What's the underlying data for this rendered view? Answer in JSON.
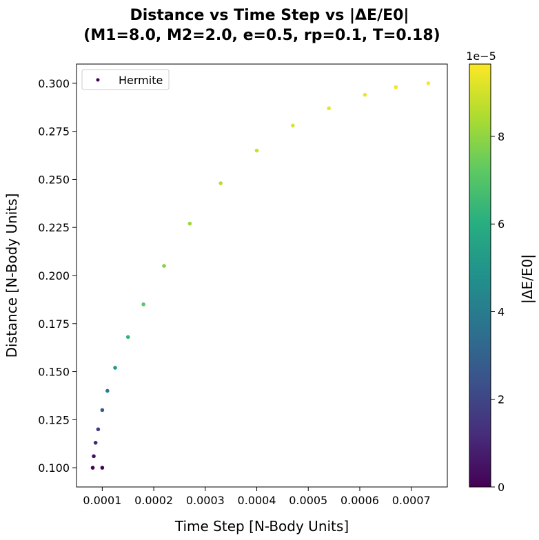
{
  "chart_data": {
    "type": "scatter",
    "title": "Distance vs Time Step vs |ΔE/E0|",
    "subtitle": "(M1=8.0, M2=2.0, e=0.5, rp=0.1, T=0.18)",
    "xlabel": "Time Step [N-Body Units]",
    "ylabel": "Distance [N-Body Units]",
    "xlim": [
      5e-05,
      0.00077
    ],
    "ylim": [
      0.09,
      0.31
    ],
    "xticks": [
      "0.0001",
      "0.0002",
      "0.0003",
      "0.0004",
      "0.0005",
      "0.0006",
      "0.0007"
    ],
    "yticks": [
      "0.100",
      "0.125",
      "0.150",
      "0.175",
      "0.200",
      "0.225",
      "0.250",
      "0.275",
      "0.300"
    ],
    "grid": false,
    "legend": {
      "placement": "top-left",
      "entries": [
        "Hermite"
      ]
    },
    "series": [
      {
        "name": "Hermite",
        "x": [
          0.0001,
          8.15e-05,
          8.35e-05,
          8.7e-05,
          9.2e-05,
          0.0001,
          0.00011,
          0.000125,
          0.00015,
          0.00018,
          0.00022,
          0.00027,
          0.00033,
          0.0004,
          0.00047,
          0.00054,
          0.00061,
          0.00067,
          0.000733
        ],
        "y": [
          0.1,
          0.1,
          0.106,
          0.113,
          0.12,
          0.13,
          0.14,
          0.152,
          0.168,
          0.185,
          0.205,
          0.227,
          0.248,
          0.265,
          0.278,
          0.287,
          0.294,
          0.298,
          0.3
        ],
        "dE": [
          0.0,
          0.0,
          5e-06,
          1e-05,
          1.8e-05,
          2.8e-05,
          4e-05,
          5.2e-05,
          6.3e-05,
          7.2e-05,
          7.8e-05,
          8.2e-05,
          8.6e-05,
          8.9e-05,
          9.1e-05,
          9.3e-05,
          9.4e-05,
          9.5e-05,
          9.6e-05
        ]
      }
    ],
    "colorbar": {
      "label": "|ΔE/E0|",
      "range": [
        0,
        9.65e-05
      ],
      "offset_text": "1e−5",
      "ticks": [
        "0",
        "2",
        "4",
        "6",
        "8"
      ],
      "colormap": "viridis"
    }
  }
}
